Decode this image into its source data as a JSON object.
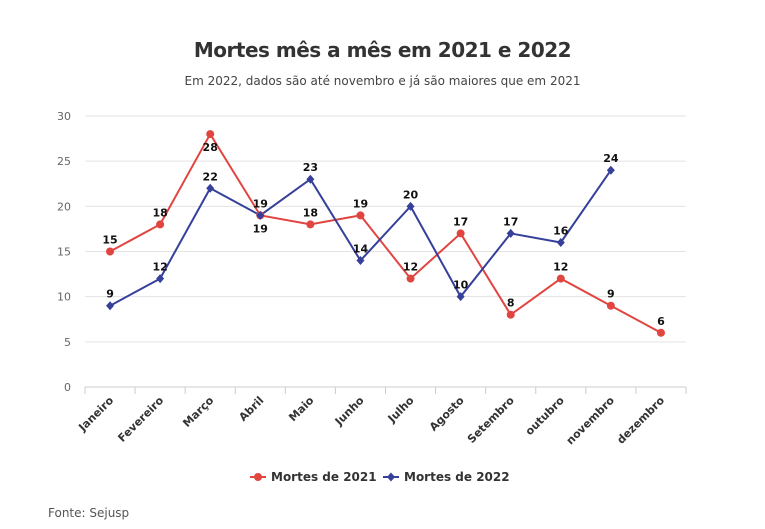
{
  "chart_data": {
    "type": "line",
    "title": "Mortes mês a mês em 2021 e 2022",
    "subtitle": "Em 2022, dados são até novembro e já são maiores que em 2021",
    "source": "Fonte: Sejusp",
    "categories": [
      "Janeiro",
      "Fevereiro",
      "Março",
      "Abril",
      "Maio",
      "Junho",
      "Julho",
      "Agosto",
      "Setembro",
      "outubro",
      "novembro",
      "dezembro"
    ],
    "ylim": [
      0,
      30
    ],
    "yticks": [
      0,
      5,
      10,
      15,
      20,
      25,
      30
    ],
    "grid": true,
    "legend_position": "bottom",
    "series": [
      {
        "name": "Mortes de 2021",
        "color": "#e04540",
        "marker": "circle",
        "values": [
          15,
          18,
          28,
          19,
          18,
          19,
          12,
          17,
          8,
          12,
          9,
          6
        ]
      },
      {
        "name": "Mortes de 2022",
        "color": "#36409a",
        "marker": "diamond",
        "values": [
          9,
          12,
          22,
          19,
          23,
          14,
          20,
          10,
          17,
          16,
          24,
          null
        ]
      }
    ]
  }
}
